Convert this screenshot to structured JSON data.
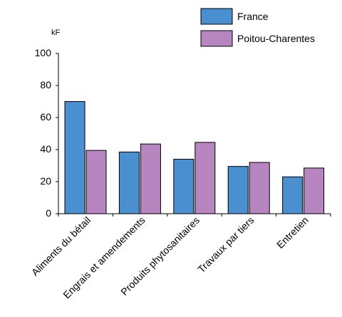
{
  "chart_data": {
    "type": "bar",
    "title": "",
    "ylabel": "kF",
    "xlabel": "",
    "ylim": [
      0,
      100
    ],
    "yticks": [
      0,
      20,
      40,
      60,
      80,
      100
    ],
    "categories": [
      "Aliments du bétail",
      "Engrais et amendements",
      "Produits phytosanitaires",
      "Travaux par tiers",
      "Entretien"
    ],
    "series": [
      {
        "name": "France",
        "color": "#4a8fd0",
        "values": [
          70,
          38.5,
          34,
          29.5,
          23
        ]
      },
      {
        "name": "Poitou-Charentes",
        "color": "#b785bf",
        "values": [
          39.5,
          43.5,
          44.5,
          32,
          28.5
        ]
      }
    ],
    "legend_position": "top-right",
    "grid": false
  }
}
